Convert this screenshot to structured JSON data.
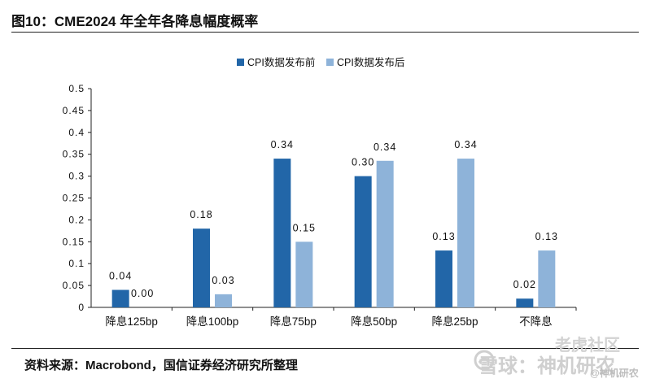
{
  "figure": {
    "title": "图10：CME2024 年全年各降息幅度概率",
    "source": "资料来源：Macrobond，国信证券经济研究所整理"
  },
  "watermark": {
    "line1": "老虎社区",
    "line2": "雪球：神机研农",
    "line3": "@神机研农"
  },
  "chart_data": {
    "type": "bar",
    "categories": [
      "降息125bp",
      "降息100bp",
      "降息75bp",
      "降息50bp",
      "降息25bp",
      "不降息"
    ],
    "series": [
      {
        "name": "CPI数据发布前",
        "values": [
          0.04,
          0.18,
          0.34,
          0.3,
          0.13,
          0.02
        ],
        "labels": [
          "0.04",
          "0.18",
          "0.34",
          "0.30",
          "0.13",
          "0.02"
        ],
        "color": "#2266a8"
      },
      {
        "name": "CPI数据发布后",
        "values": [
          0.0,
          0.03,
          0.15,
          0.335,
          0.34,
          0.13
        ],
        "labels": [
          "0.00",
          "0.03",
          "0.15",
          "0.34",
          "0.34",
          "0.13"
        ],
        "color": "#8eb3d9"
      }
    ],
    "y_ticks": [
      "0",
      "0.05",
      "0.1",
      "0.15",
      "0.2",
      "0.25",
      "0.3",
      "0.35",
      "0.4",
      "0.45",
      "0.5"
    ],
    "ylim": [
      0,
      0.5
    ],
    "grid": false,
    "legend_position": "top-center"
  }
}
